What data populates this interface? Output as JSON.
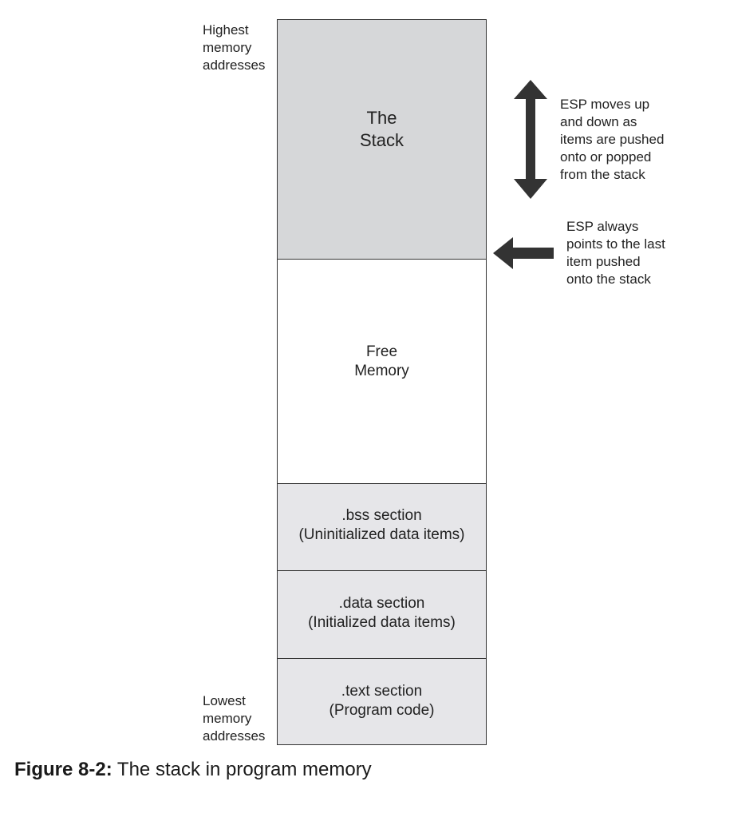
{
  "labels": {
    "highest": "Highest\nmemory\naddresses",
    "lowest": "Lowest\nmemory\naddresses"
  },
  "blocks": {
    "stack": "The\nStack",
    "free": "Free\nMemory",
    "bss": ".bss section\n(Uninitialized data items)",
    "data": ".data section\n(Initialized data items)",
    "text": ".text section\n(Program code)"
  },
  "notes": {
    "esp_moves": "ESP moves up\nand down as\nitems are pushed\nonto or popped\nfrom the stack",
    "esp_points": "ESP always\npoints to the last\nitem pushed\nonto the stack"
  },
  "caption": {
    "number": "Figure 8-2:",
    "text": "The stack in program memory"
  },
  "colors": {
    "stack_fill": "#d6d7d9",
    "section_fill": "#e6e6e9",
    "free_fill": "#ffffff",
    "arrow": "#333333"
  }
}
